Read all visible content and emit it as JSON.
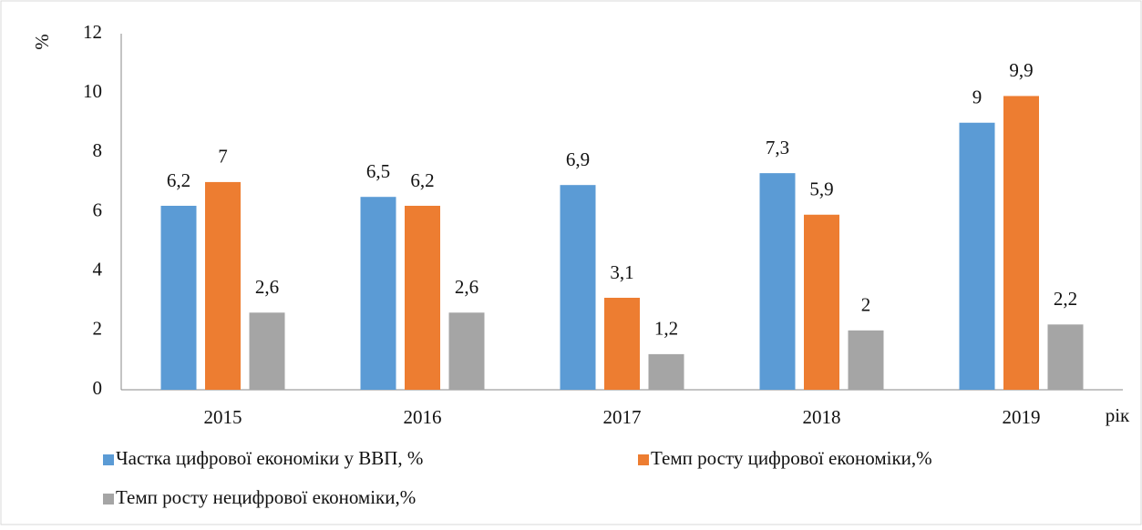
{
  "chart_data": {
    "type": "bar",
    "ylabel": "%",
    "xlabel": "рік",
    "categories": [
      "2015",
      "2016",
      "2017",
      "2018",
      "2019"
    ],
    "series": [
      {
        "name": "Частка цифрової економіки у ВВП, %",
        "color": "#5b9bd5",
        "values": [
          6.2,
          6.5,
          6.9,
          7.3,
          9
        ],
        "value_labels": [
          "6,2",
          "6,5",
          "6,9",
          "7,3",
          "9"
        ]
      },
      {
        "name": "Темп росту цифрової економіки,%",
        "color": "#ed7d31",
        "values": [
          7,
          6.2,
          3.1,
          5.9,
          9.9
        ],
        "value_labels": [
          "7",
          "6,2",
          "3,1",
          "5,9",
          "9,9"
        ]
      },
      {
        "name": "Темп росту нецифрової економіки,%",
        "color": "#a5a5a5",
        "values": [
          2.6,
          2.6,
          1.2,
          2,
          2.2
        ],
        "value_labels": [
          "2,6",
          "2,6",
          "1,2",
          "2",
          "2,2"
        ]
      }
    ],
    "ylim": [
      0,
      12
    ],
    "yticks": [
      0,
      2,
      4,
      6,
      8,
      10,
      12
    ],
    "grid": false,
    "legend": "bottom"
  }
}
